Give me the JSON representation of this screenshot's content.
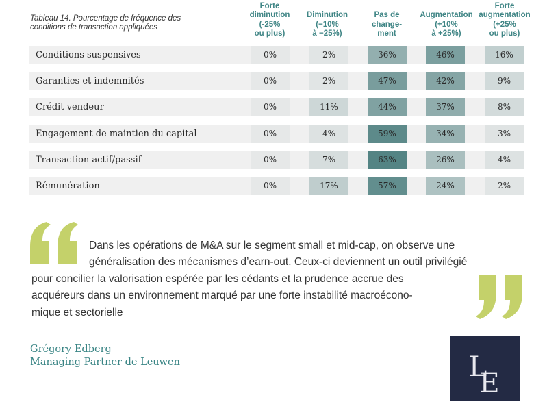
{
  "table": {
    "caption_line1": "Tableau 14. Pourcentage de fréquence des",
    "caption_line2": "conditions de transaction appliquées",
    "columns": [
      {
        "lines": [
          "Forte",
          "diminution",
          "(-25%",
          "ou plus)"
        ]
      },
      {
        "lines": [
          "Diminution",
          "(−10%",
          "à −25%)"
        ]
      },
      {
        "lines": [
          "Pas de",
          "change-",
          "ment"
        ]
      },
      {
        "lines": [
          "Augmentation",
          "(+10%",
          "à +25%)"
        ]
      },
      {
        "lines": [
          "Forte",
          "augmentation",
          "(+25%",
          "ou plus)"
        ]
      }
    ],
    "rows": [
      {
        "label": "Conditions suspensives",
        "values": [
          "0%",
          "2%",
          "36%",
          "46%",
          "16%"
        ],
        "shares": [
          0,
          2,
          36,
          46,
          16
        ]
      },
      {
        "label": "Garanties et indemnités",
        "values": [
          "0%",
          "2%",
          "47%",
          "42%",
          "9%"
        ],
        "shares": [
          0,
          2,
          47,
          42,
          9
        ]
      },
      {
        "label": "Crédit vendeur",
        "values": [
          "0%",
          "11%",
          "44%",
          "37%",
          "8%"
        ],
        "shares": [
          0,
          11,
          44,
          37,
          8
        ]
      },
      {
        "label": "Engagement de maintien du capital",
        "values": [
          "0%",
          "4%",
          "59%",
          "34%",
          "3%"
        ],
        "shares": [
          0,
          4,
          59,
          34,
          3
        ]
      },
      {
        "label": "Transaction actif/passif",
        "values": [
          "0%",
          "7%",
          "63%",
          "26%",
          "4%"
        ],
        "shares": [
          0,
          7,
          63,
          26,
          4
        ]
      },
      {
        "label": "Rémunération",
        "values": [
          "0%",
          "17%",
          "57%",
          "24%",
          "2%"
        ],
        "shares": [
          0,
          17,
          57,
          24,
          2
        ]
      }
    ]
  },
  "quote": {
    "lines": [
      "Dans les opérations de M&A sur le segment small et mid-cap, on observe une",
      "généralisation des mécanismes d’earn-out. Ceux-ci deviennent un outil privilégié",
      "pour concilier la valorisation espérée par les cédants et la prudence accrue des",
      "acquéreurs dans un environnement marqué par une forte instabilité macroécono-",
      "mique et sectorielle"
    ],
    "author_name": "Grégory Edberg",
    "author_title": "Managing Partner de Leuwen"
  },
  "logo": {
    "letter_1": "L",
    "letter_2": "E"
  },
  "colors": {
    "accent": "#3f8585",
    "quote_marks": "#c4d16a",
    "logo_bg": "#232a44",
    "row_bg": "#f0f0f0"
  }
}
